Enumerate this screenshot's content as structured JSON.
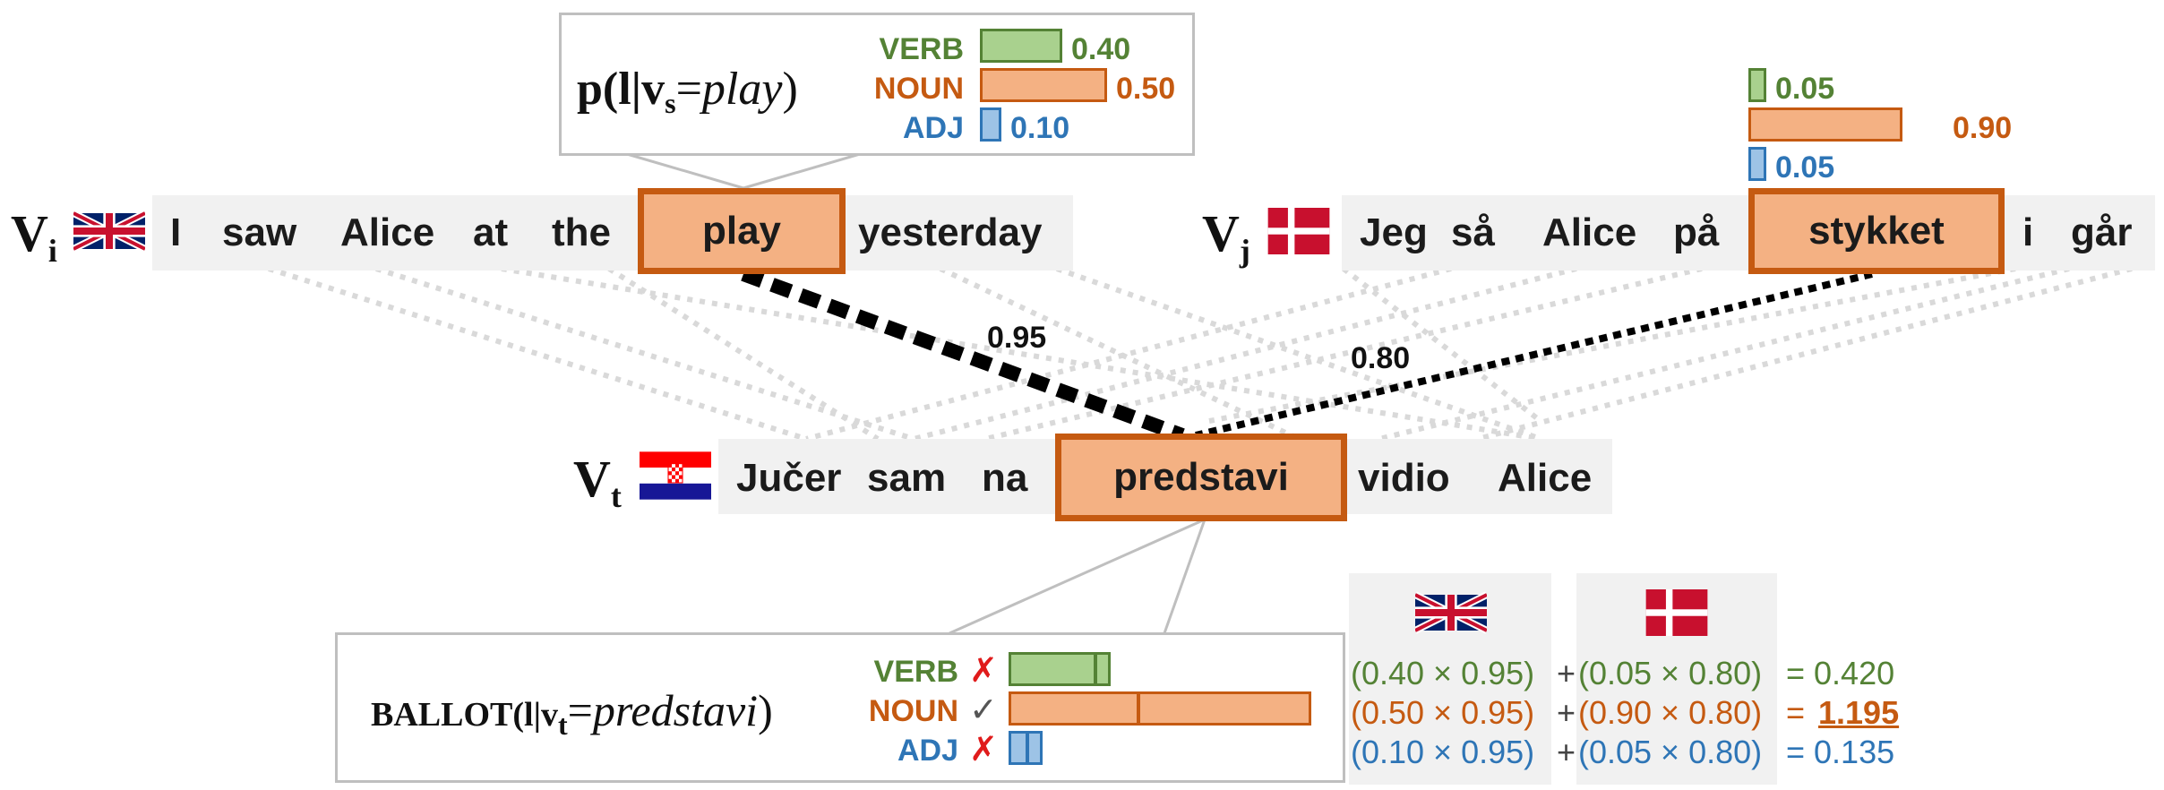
{
  "source_i": {
    "label": "V",
    "sub": "i",
    "flag": "uk",
    "words": [
      "I",
      "saw",
      "Alice",
      "at",
      "the",
      "play",
      "yesterday"
    ],
    "highlight_index": 5
  },
  "source_j": {
    "label": "V",
    "sub": "j",
    "flag": "dk",
    "words": [
      "Jeg",
      "så",
      "Alice",
      "på",
      "stykket",
      "i",
      "går"
    ],
    "highlight_index": 4
  },
  "target": {
    "label": "V",
    "sub": "t",
    "flag": "hr",
    "words": [
      "Jučer",
      "sam",
      "na",
      "predstavi",
      "vidio",
      "Alice"
    ],
    "highlight_index": 3
  },
  "edges": [
    {
      "from": "play",
      "to": "predstavi",
      "weight": "0.95"
    },
    {
      "from": "stykket",
      "to": "predstavi",
      "weight": "0.80"
    }
  ],
  "prob_callout": {
    "prefix": "p(l|v",
    "sub": "s",
    "eq": "=",
    "word": "play",
    "close": ")"
  },
  "labels": {
    "verb": "VERB",
    "noun": "NOUN",
    "adj": "ADJ"
  },
  "dist_i": {
    "verb": "0.40",
    "noun": "0.50",
    "adj": "0.10"
  },
  "dist_j": {
    "verb": "0.05",
    "noun": "0.90",
    "adj": "0.05"
  },
  "ballot_callout": {
    "prefix": "BALLOT(l|v",
    "sub": "t",
    "eq": "=",
    "word": "predstavi",
    "close": ")",
    "marks": {
      "verb": "✗",
      "noun": "✓",
      "adj": "✗"
    }
  },
  "ballot_totals": {
    "verb": 0.42,
    "noun": 1.195,
    "adj": 0.135
  },
  "calc": {
    "verb": {
      "a": "(0.40 × 0.95)",
      "plus": "+",
      "b": "(0.05 × 0.80)",
      "res": "= 0.420"
    },
    "noun": {
      "a": "(0.50 × 0.95)",
      "plus": "+",
      "b": "(0.90 × 0.80)",
      "res_eq": "=",
      "res": "1.195"
    },
    "adj": {
      "a": "(0.10 × 0.95)",
      "plus": "+",
      "b": "(0.05 × 0.80)",
      "res": "= 0.135"
    }
  },
  "colors": {
    "verb": "#548235",
    "noun": "#c55a11",
    "adj": "#2e75b6",
    "highlight_fill": "#f4b183",
    "highlight_border": "#c55a11"
  }
}
